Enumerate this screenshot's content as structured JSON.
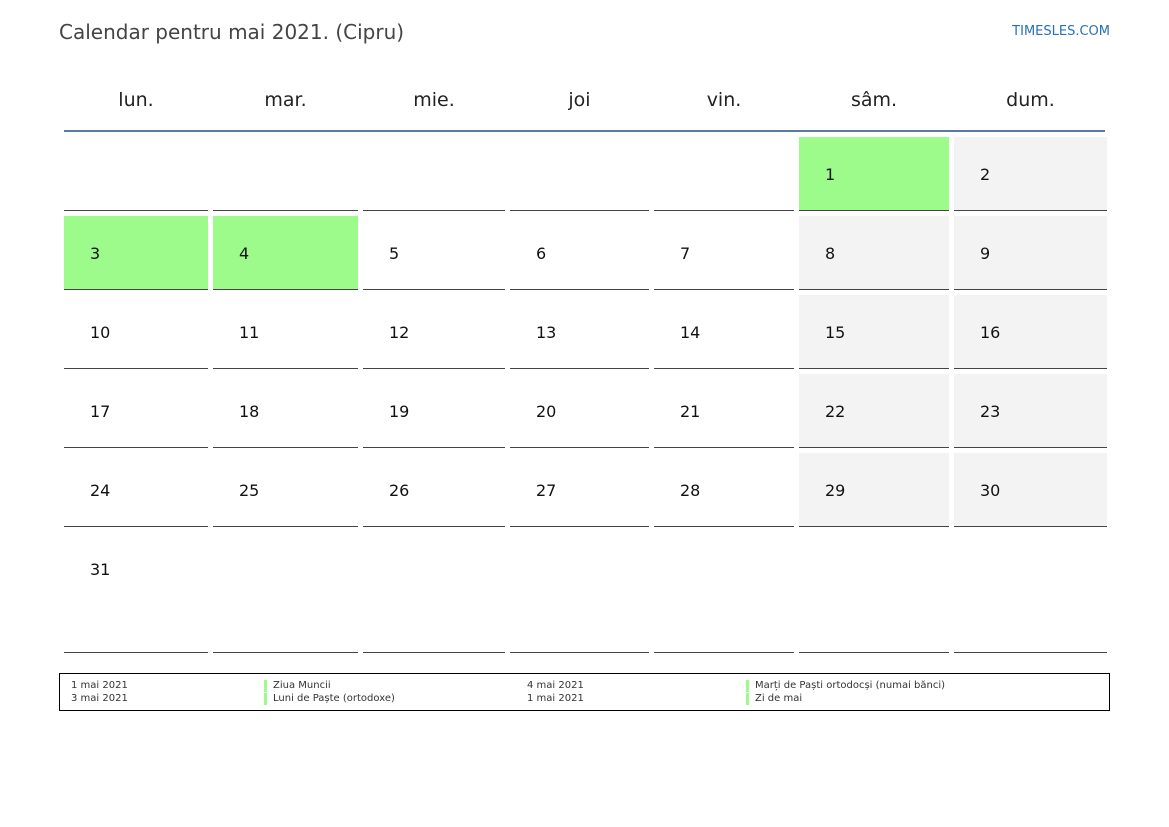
{
  "header": {
    "title": "Calendar pentru mai 2021. (Cipru)",
    "site": "TIMESLES.COM"
  },
  "weekdays": [
    "lun.",
    "mar.",
    "mie.",
    "joi",
    "vin.",
    "sâm.",
    "dum."
  ],
  "weeks": [
    [
      null,
      null,
      null,
      null,
      null,
      "1",
      "2"
    ],
    [
      "3",
      "4",
      "5",
      "6",
      "7",
      "8",
      "9"
    ],
    [
      "10",
      "11",
      "12",
      "13",
      "14",
      "15",
      "16"
    ],
    [
      "17",
      "18",
      "19",
      "20",
      "21",
      "22",
      "23"
    ],
    [
      "24",
      "25",
      "26",
      "27",
      "28",
      "29",
      "30"
    ],
    [
      "31",
      null,
      null,
      null,
      null,
      null,
      null
    ]
  ],
  "holiday_days": [
    "1",
    "3",
    "4"
  ],
  "holiday_color": "#9cfb8a",
  "weekend_color": "#f3f3f3",
  "legend": [
    {
      "date": "1 mai 2021",
      "name": "Ziua Muncii"
    },
    {
      "date": "3 mai 2021",
      "name": "Luni de Paște (ortodoxe)"
    },
    {
      "date": "4 mai 2021",
      "name": "Marți de Paști ortodocși (numai bănci)"
    },
    {
      "date": "1 mai 2021",
      "name": "Zi de mai"
    }
  ]
}
